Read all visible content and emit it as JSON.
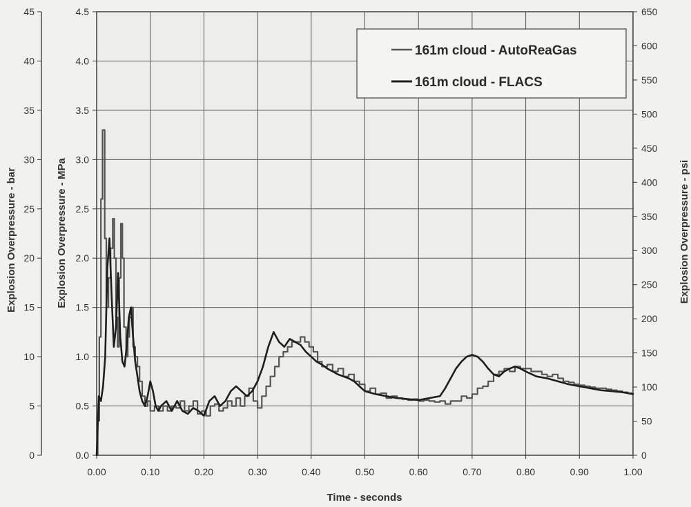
{
  "chart_data": {
    "type": "line",
    "xlabel": "Time - seconds",
    "xlim": [
      0,
      1.0
    ],
    "x_ticks": [
      "0.00",
      "0.10",
      "0.20",
      "0.30",
      "0.40",
      "0.50",
      "0.60",
      "0.70",
      "0.80",
      "0.90",
      "1.00"
    ],
    "ylabel": "Explosion Overpressure - MPa",
    "ylim": [
      0,
      4.5
    ],
    "y_ticks": [
      "0.0",
      "0.5",
      "1.0",
      "1.5",
      "2.0",
      "2.5",
      "3.0",
      "3.5",
      "4.0",
      "4.5"
    ],
    "y_left_outer": {
      "label": "Explosion Overpressure - bar",
      "lim": [
        0,
        45
      ],
      "ticks": [
        "0",
        "5",
        "10",
        "15",
        "20",
        "25",
        "30",
        "35",
        "40",
        "45"
      ]
    },
    "y_right": {
      "label": "Explosion Overpressure - psi",
      "lim": [
        0,
        650
      ],
      "ticks": [
        "0",
        "50",
        "100",
        "150",
        "200",
        "250",
        "300",
        "350",
        "400",
        "450",
        "500",
        "550",
        "600",
        "650"
      ]
    },
    "grid": true,
    "legend_position": "top-right",
    "series": [
      {
        "name": "161m cloud - AutoReaGas",
        "color": "#555555",
        "step": true,
        "x": [
          0.0,
          0.002,
          0.005,
          0.008,
          0.011,
          0.015,
          0.018,
          0.022,
          0.026,
          0.03,
          0.033,
          0.036,
          0.039,
          0.042,
          0.045,
          0.048,
          0.051,
          0.055,
          0.058,
          0.061,
          0.065,
          0.068,
          0.072,
          0.076,
          0.08,
          0.085,
          0.09,
          0.095,
          0.1,
          0.108,
          0.116,
          0.124,
          0.132,
          0.14,
          0.148,
          0.156,
          0.164,
          0.172,
          0.18,
          0.188,
          0.196,
          0.204,
          0.212,
          0.22,
          0.228,
          0.236,
          0.244,
          0.252,
          0.26,
          0.268,
          0.276,
          0.284,
          0.292,
          0.3,
          0.308,
          0.316,
          0.324,
          0.332,
          0.34,
          0.348,
          0.356,
          0.364,
          0.372,
          0.38,
          0.388,
          0.396,
          0.404,
          0.412,
          0.42,
          0.43,
          0.44,
          0.45,
          0.46,
          0.47,
          0.48,
          0.49,
          0.5,
          0.51,
          0.52,
          0.53,
          0.54,
          0.55,
          0.56,
          0.57,
          0.58,
          0.59,
          0.6,
          0.61,
          0.62,
          0.63,
          0.64,
          0.65,
          0.66,
          0.67,
          0.68,
          0.69,
          0.7,
          0.71,
          0.72,
          0.73,
          0.74,
          0.75,
          0.76,
          0.77,
          0.78,
          0.79,
          0.8,
          0.81,
          0.82,
          0.83,
          0.84,
          0.85,
          0.86,
          0.87,
          0.88,
          0.89,
          0.9,
          0.91,
          0.92,
          0.93,
          0.94,
          0.95,
          0.96,
          0.97,
          0.98,
          0.99,
          1.0
        ],
        "y": [
          0.0,
          0.35,
          1.2,
          2.6,
          3.3,
          2.2,
          1.5,
          1.8,
          2.1,
          2.4,
          2.0,
          1.4,
          1.1,
          1.8,
          2.35,
          2.0,
          1.3,
          1.0,
          1.2,
          1.4,
          1.5,
          1.1,
          1.0,
          0.9,
          0.75,
          0.6,
          0.5,
          0.55,
          0.45,
          0.5,
          0.45,
          0.5,
          0.45,
          0.5,
          0.48,
          0.55,
          0.45,
          0.5,
          0.55,
          0.42,
          0.45,
          0.4,
          0.5,
          0.52,
          0.45,
          0.48,
          0.55,
          0.5,
          0.58,
          0.5,
          0.6,
          0.68,
          0.55,
          0.48,
          0.6,
          0.7,
          0.8,
          0.9,
          1.0,
          1.05,
          1.1,
          1.15,
          1.15,
          1.2,
          1.15,
          1.1,
          1.05,
          0.95,
          0.9,
          0.92,
          0.85,
          0.88,
          0.8,
          0.82,
          0.75,
          0.72,
          0.65,
          0.68,
          0.62,
          0.63,
          0.58,
          0.6,
          0.58,
          0.57,
          0.56,
          0.57,
          0.55,
          0.56,
          0.55,
          0.54,
          0.55,
          0.52,
          0.55,
          0.55,
          0.6,
          0.58,
          0.62,
          0.68,
          0.7,
          0.75,
          0.82,
          0.85,
          0.88,
          0.85,
          0.9,
          0.88,
          0.88,
          0.85,
          0.85,
          0.82,
          0.8,
          0.82,
          0.78,
          0.75,
          0.74,
          0.72,
          0.71,
          0.7,
          0.69,
          0.68,
          0.68,
          0.67,
          0.66,
          0.65,
          0.64,
          0.63,
          0.62
        ]
      },
      {
        "name": "161m cloud - FLACS",
        "color": "#1e1e1e",
        "step": false,
        "x": [
          0.0,
          0.004,
          0.008,
          0.012,
          0.016,
          0.02,
          0.024,
          0.028,
          0.032,
          0.036,
          0.04,
          0.044,
          0.048,
          0.052,
          0.056,
          0.06,
          0.064,
          0.068,
          0.072,
          0.076,
          0.08,
          0.085,
          0.09,
          0.095,
          0.1,
          0.105,
          0.11,
          0.115,
          0.12,
          0.13,
          0.14,
          0.15,
          0.16,
          0.17,
          0.18,
          0.19,
          0.2,
          0.21,
          0.22,
          0.23,
          0.24,
          0.25,
          0.26,
          0.27,
          0.28,
          0.29,
          0.3,
          0.31,
          0.32,
          0.33,
          0.34,
          0.35,
          0.36,
          0.37,
          0.38,
          0.39,
          0.4,
          0.41,
          0.42,
          0.43,
          0.44,
          0.45,
          0.46,
          0.47,
          0.48,
          0.49,
          0.5,
          0.52,
          0.54,
          0.56,
          0.58,
          0.6,
          0.62,
          0.64,
          0.65,
          0.66,
          0.67,
          0.68,
          0.69,
          0.7,
          0.71,
          0.72,
          0.73,
          0.74,
          0.75,
          0.76,
          0.77,
          0.78,
          0.79,
          0.8,
          0.82,
          0.84,
          0.86,
          0.88,
          0.9,
          0.92,
          0.94,
          0.96,
          0.98,
          1.0
        ],
        "y": [
          0.0,
          0.6,
          0.55,
          0.7,
          1.0,
          1.9,
          2.2,
          1.6,
          1.1,
          1.3,
          1.85,
          1.2,
          0.95,
          0.9,
          1.1,
          1.4,
          1.5,
          1.2,
          0.95,
          0.8,
          0.65,
          0.55,
          0.5,
          0.6,
          0.75,
          0.65,
          0.5,
          0.45,
          0.5,
          0.55,
          0.45,
          0.55,
          0.45,
          0.42,
          0.48,
          0.45,
          0.4,
          0.55,
          0.6,
          0.5,
          0.55,
          0.65,
          0.7,
          0.65,
          0.6,
          0.65,
          0.75,
          0.9,
          1.1,
          1.25,
          1.15,
          1.1,
          1.18,
          1.15,
          1.12,
          1.05,
          1.0,
          0.95,
          0.92,
          0.88,
          0.85,
          0.82,
          0.8,
          0.78,
          0.75,
          0.7,
          0.65,
          0.62,
          0.6,
          0.58,
          0.57,
          0.56,
          0.58,
          0.6,
          0.68,
          0.78,
          0.88,
          0.95,
          1.0,
          1.02,
          1.0,
          0.95,
          0.88,
          0.82,
          0.8,
          0.85,
          0.88,
          0.9,
          0.88,
          0.85,
          0.8,
          0.78,
          0.75,
          0.72,
          0.7,
          0.68,
          0.66,
          0.65,
          0.64,
          0.62
        ]
      }
    ]
  }
}
